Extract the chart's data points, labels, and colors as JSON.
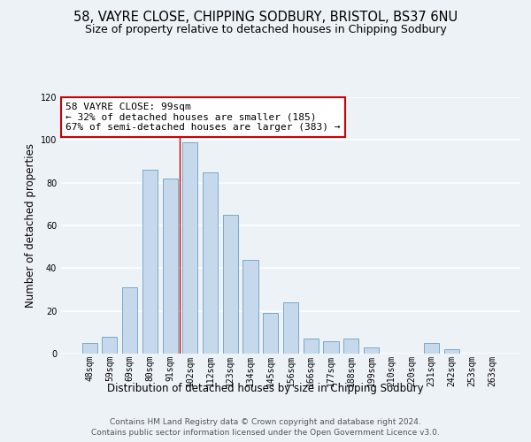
{
  "title": "58, VAYRE CLOSE, CHIPPING SODBURY, BRISTOL, BS37 6NU",
  "subtitle": "Size of property relative to detached houses in Chipping Sodbury",
  "xlabel": "Distribution of detached houses by size in Chipping Sodbury",
  "ylabel": "Number of detached properties",
  "footnote1": "Contains HM Land Registry data © Crown copyright and database right 2024.",
  "footnote2": "Contains public sector information licensed under the Open Government Licence v3.0.",
  "bar_labels": [
    "48sqm",
    "59sqm",
    "69sqm",
    "80sqm",
    "91sqm",
    "102sqm",
    "112sqm",
    "123sqm",
    "134sqm",
    "145sqm",
    "156sqm",
    "166sqm",
    "177sqm",
    "188sqm",
    "199sqm",
    "210sqm",
    "220sqm",
    "231sqm",
    "242sqm",
    "253sqm",
    "263sqm"
  ],
  "bar_values": [
    5,
    8,
    31,
    86,
    82,
    99,
    85,
    65,
    44,
    19,
    24,
    7,
    6,
    7,
    3,
    0,
    0,
    5,
    2,
    0,
    0
  ],
  "bar_color": "#c6d9ec",
  "bar_edge_color": "#7aaac8",
  "annotation_title": "58 VAYRE CLOSE: 99sqm",
  "annotation_line1": "← 32% of detached houses are smaller (185)",
  "annotation_line2": "67% of semi-detached houses are larger (383) →",
  "annotation_box_color": "#ffffff",
  "annotation_box_edge_color": "#cc0000",
  "highlight_line_color": "#cc0000",
  "ylim": [
    0,
    120
  ],
  "yticks": [
    0,
    20,
    40,
    60,
    80,
    100,
    120
  ],
  "background_color": "#edf2f7",
  "plot_bg_color": "#edf2f7",
  "grid_color": "#ffffff",
  "title_fontsize": 10.5,
  "subtitle_fontsize": 9,
  "axis_label_fontsize": 8.5,
  "tick_fontsize": 7,
  "annotation_fontsize": 8,
  "footnote_fontsize": 6.5
}
